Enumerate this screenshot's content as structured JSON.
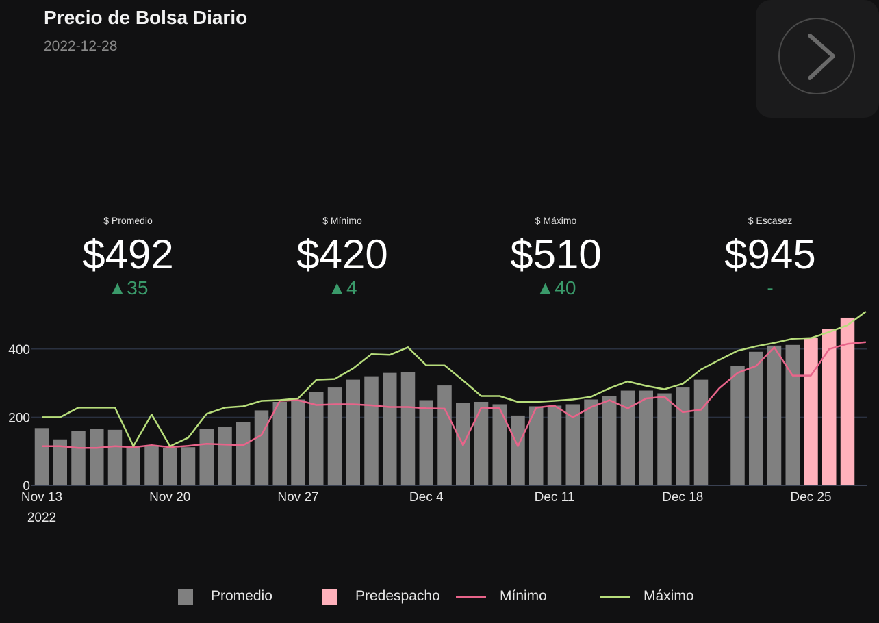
{
  "header": {
    "title": "Precio de Bolsa Diario",
    "date": "2022-12-28"
  },
  "next_button": {
    "icon": "chevron-right-icon"
  },
  "kpis": [
    {
      "label": "$ Promedio",
      "value": "$492",
      "delta": "▲35"
    },
    {
      "label": "$ Mínimo",
      "value": "$420",
      "delta": "▲4"
    },
    {
      "label": "$ Máximo",
      "value": "$510",
      "delta": "▲40"
    },
    {
      "label": "$ Escasez",
      "value": "$945",
      "delta": "-"
    }
  ],
  "colors": {
    "promedio": "#808080",
    "predespacho": "#ffb1bb",
    "minimo": "#e8648a",
    "maximo": "#b7dd7b",
    "delta_up": "#3a9a6a",
    "grid": "#2a3140"
  },
  "chart_data": {
    "type": "bar",
    "x_axis": {
      "ticks": [
        "Nov 13",
        "Nov 20",
        "Nov 27",
        "Dec 4",
        "Dec 11",
        "Dec 18",
        "Dec 25"
      ],
      "tick_year": "2022"
    },
    "y_axis": {
      "ticks": [
        "0",
        "200",
        "400"
      ],
      "ylim": [
        0,
        510
      ]
    },
    "grid": true,
    "legend_position": "bottom",
    "x": [
      "2022-11-13",
      "2022-11-14",
      "2022-11-15",
      "2022-11-16",
      "2022-11-17",
      "2022-11-18",
      "2022-11-19",
      "2022-11-20",
      "2022-11-21",
      "2022-11-22",
      "2022-11-23",
      "2022-11-24",
      "2022-11-25",
      "2022-11-26",
      "2022-11-27",
      "2022-11-28",
      "2022-11-29",
      "2022-11-30",
      "2022-12-01",
      "2022-12-02",
      "2022-12-03",
      "2022-12-04",
      "2022-12-05",
      "2022-12-06",
      "2022-12-07",
      "2022-12-08",
      "2022-12-09",
      "2022-12-10",
      "2022-12-11",
      "2022-12-12",
      "2022-12-13",
      "2022-12-14",
      "2022-12-15",
      "2022-12-16",
      "2022-12-17",
      "2022-12-18",
      "2022-12-19",
      "2022-12-20",
      "2022-12-21",
      "2022-12-22",
      "2022-12-23",
      "2022-12-24",
      "2022-12-25",
      "2022-12-26",
      "2022-12-27",
      "2022-12-28"
    ],
    "series": [
      {
        "name": "Promedio",
        "kind": "bar",
        "values": [
          168,
          135,
          160,
          165,
          163,
          112,
          115,
          110,
          112,
          165,
          172,
          185,
          220,
          245,
          252,
          275,
          287,
          310,
          320,
          330,
          332,
          250,
          293,
          242,
          245,
          238,
          205,
          232,
          234,
          238,
          252,
          262,
          278,
          278,
          270,
          287,
          310,
          null,
          350,
          392,
          410,
          412,
          null,
          null,
          null,
          null
        ]
      },
      {
        "name": "Predespacho",
        "kind": "bar",
        "values": [
          null,
          null,
          null,
          null,
          null,
          null,
          null,
          null,
          null,
          null,
          null,
          null,
          null,
          null,
          null,
          null,
          null,
          null,
          null,
          null,
          null,
          null,
          null,
          null,
          null,
          null,
          null,
          null,
          null,
          null,
          null,
          null,
          null,
          null,
          null,
          null,
          null,
          null,
          null,
          null,
          null,
          null,
          432,
          458,
          492,
          null
        ]
      },
      {
        "name": "Mínimo",
        "kind": "line",
        "values": [
          115,
          115,
          110,
          110,
          115,
          112,
          118,
          112,
          116,
          122,
          120,
          118,
          148,
          248,
          250,
          236,
          238,
          238,
          235,
          230,
          230,
          226,
          225,
          118,
          228,
          226,
          115,
          228,
          234,
          200,
          230,
          250,
          226,
          255,
          260,
          215,
          222,
          285,
          330,
          350,
          405,
          322,
          322,
          400,
          415,
          420
        ]
      },
      {
        "name": "Máximo",
        "kind": "line",
        "values": [
          200,
          200,
          228,
          228,
          228,
          115,
          208,
          115,
          140,
          210,
          228,
          232,
          248,
          250,
          255,
          310,
          312,
          343,
          385,
          383,
          405,
          352,
          352,
          308,
          262,
          262,
          245,
          245,
          248,
          252,
          260,
          285,
          305,
          292,
          282,
          298,
          340,
          368,
          395,
          408,
          418,
          430,
          432,
          450,
          470,
          510
        ]
      }
    ]
  }
}
